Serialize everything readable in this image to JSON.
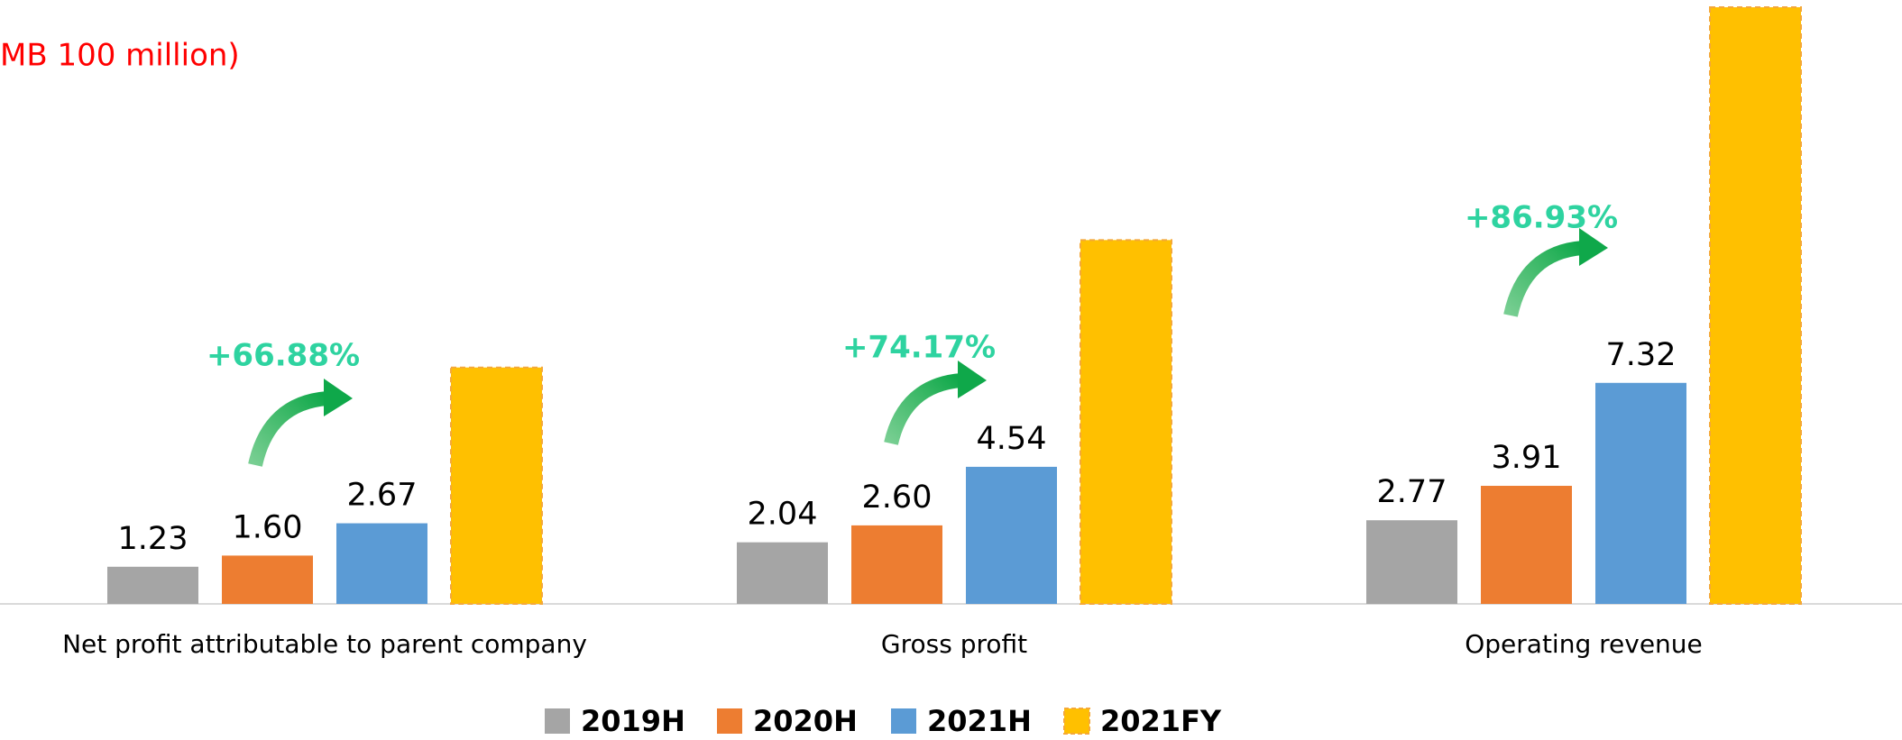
{
  "chart_data": {
    "type": "bar",
    "title": "MB 100 million)",
    "categories": [
      "Net profit attributable to parent company",
      "Gross profit",
      "Operating revenue"
    ],
    "series": [
      {
        "name": "2019H",
        "color": "#a5a5a5",
        "values": [
          1.23,
          2.04,
          2.77
        ],
        "value_labels": [
          "1.23",
          "2.04",
          "2.77"
        ]
      },
      {
        "name": "2020H",
        "color": "#ed7d31",
        "values": [
          1.6,
          2.6,
          3.91
        ],
        "value_labels": [
          "1.60",
          "2.60",
          "3.91"
        ]
      },
      {
        "name": "2021H",
        "color": "#5b9bd5",
        "values": [
          2.67,
          4.54,
          7.32
        ],
        "value_labels": [
          "2.67",
          "4.54",
          "7.32"
        ]
      },
      {
        "name": "2021FY",
        "color": "#ffc000",
        "border_color": "#f4a83a",
        "dashed": true,
        "values": [
          7.83,
          12.05,
          19.76
        ]
      }
    ],
    "annotations": [
      "+66.88%",
      "+74.17%",
      "+86.93%"
    ],
    "ylim": [
      0,
      20
    ]
  }
}
